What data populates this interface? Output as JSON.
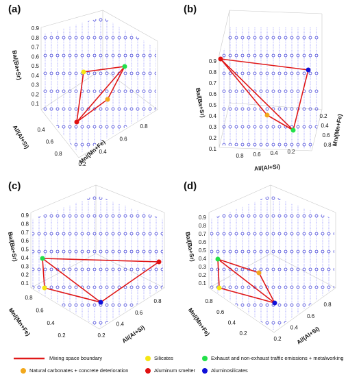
{
  "panels": [
    {
      "label": "(a)",
      "z_label": "Ba/(Ba+Sr)",
      "z_ticks": [
        "0.1",
        "0.2",
        "0.3",
        "0.4",
        "0.5",
        "0.6",
        "0.7",
        "0.8",
        "0.9"
      ],
      "a_label": "Al/(Al+Si)",
      "a_ticks": [
        "0.4",
        "0.6",
        "0.8"
      ],
      "b_label": "Mn/(Mn+Fe)",
      "b_ticks": [
        "0.2",
        "0.4",
        "0.6",
        "0.8"
      ]
    },
    {
      "label": "(b)",
      "z_label": "Ba/(Ba+Sr)",
      "z_ticks": [
        "0.1",
        "0.2",
        "0.3",
        "0.4",
        "0.5",
        "0.6",
        "0.7",
        "0.8",
        "0.9"
      ],
      "a_label": "Al/(Al+Si)",
      "a_ticks": [
        "0.8",
        "0.6",
        "0.4",
        "0.2"
      ],
      "b_label": "Mn/(Mn+Fe)",
      "b_ticks": [
        "0.2",
        "0.4",
        "0.6",
        "0.8"
      ]
    },
    {
      "label": "(c)",
      "z_label": "Ba/(Ba+Sr)",
      "z_ticks": [
        "0.1",
        "0.2",
        "0.3",
        "0.4",
        "0.5",
        "0.6",
        "0.7",
        "0.8",
        "0.9"
      ],
      "a_label": "Mn/(Mn+Fe)",
      "a_ticks": [
        "0.8",
        "0.6",
        "0.4",
        "0.2"
      ],
      "b_label": "Al/(Al+Si)",
      "b_ticks": [
        "0.2",
        "0.4",
        "0.6",
        "0.8"
      ]
    },
    {
      "label": "(d)",
      "z_label": "Ba/(Ba+Sr)",
      "z_ticks": [
        "0.1",
        "0.2",
        "0.3",
        "0.4",
        "0.5",
        "0.6",
        "0.7",
        "0.8",
        "0.9"
      ],
      "a_label": "Mn/(Mn+Fe)",
      "a_ticks": [
        "0.8",
        "0.6",
        "0.4",
        "0.2"
      ],
      "b_label": "Al/(Al+Si)",
      "b_ticks": [
        "0.2",
        "0.4",
        "0.6",
        "0.8"
      ]
    }
  ],
  "legend": [
    {
      "name": "Mixing space boundary",
      "color": "#e01818",
      "kind": "line"
    },
    {
      "name": "Silicates",
      "color": "#f5e614",
      "kind": "dot"
    },
    {
      "name": "Exhaust and non-exhaust traffic emissions + metalworking",
      "color": "#22e04a",
      "kind": "dot"
    },
    {
      "name": "Natural carbonates + concrete deterioration",
      "color": "#f2a81c",
      "kind": "dot"
    },
    {
      "name": "Aluminum smelter",
      "color": "#e01010",
      "kind": "dot"
    },
    {
      "name": "Aluminosilicates",
      "color": "#1010d8",
      "kind": "dot"
    }
  ]
}
